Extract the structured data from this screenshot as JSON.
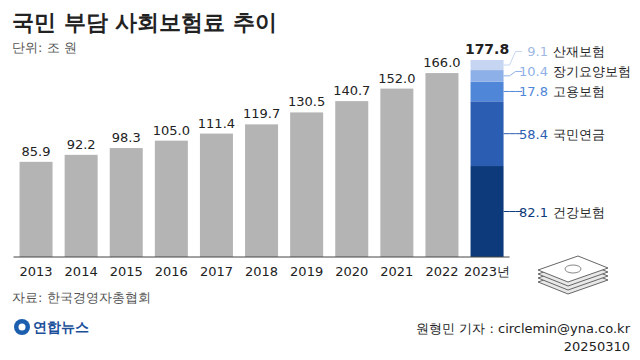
{
  "chart_data": {
    "type": "bar",
    "title": "국민 부담 사회보험료 추이",
    "subtitle": "단위: 조 원",
    "source": "자료: 한국경영자총협회",
    "credit": "원형민 기자 : circlemin@yna.co.kr",
    "date": "20250310",
    "logo": "연합뉴스",
    "categories": [
      "2013",
      "2014",
      "2015",
      "2016",
      "2017",
      "2018",
      "2019",
      "2020",
      "2021",
      "2022",
      "2023년"
    ],
    "stacked": true,
    "data_labels": true,
    "tick_labels": "x",
    "grid": false,
    "ylim": [
      0,
      190
    ],
    "series": [
      {
        "color": "#b4b4b4",
        "values": [
          85.9,
          92.2,
          98.3,
          105.0,
          111.4,
          119.7,
          130.5,
          140.7,
          152.0,
          166.0,
          null
        ],
        "value_labels": [
          "85.9",
          "92.2",
          "98.3",
          "105.0",
          "111.4",
          "119.7",
          "130.5",
          "140.7",
          "152.0",
          "166.0",
          null
        ]
      },
      {
        "name": "건강보험",
        "color": "#0c3a7a",
        "values": [
          null,
          null,
          null,
          null,
          null,
          null,
          null,
          null,
          null,
          null,
          82.1
        ],
        "value_labels": [
          null,
          null,
          null,
          null,
          null,
          null,
          null,
          null,
          null,
          null,
          "82.1"
        ]
      },
      {
        "name": "국민연금",
        "color": "#2b5db2",
        "values": [
          null,
          null,
          null,
          null,
          null,
          null,
          null,
          null,
          null,
          null,
          58.4
        ],
        "value_labels": [
          null,
          null,
          null,
          null,
          null,
          null,
          null,
          null,
          null,
          null,
          "58.4"
        ]
      },
      {
        "name": "고용보험",
        "color": "#4f86d8",
        "values": [
          null,
          null,
          null,
          null,
          null,
          null,
          null,
          null,
          null,
          null,
          17.8
        ],
        "value_labels": [
          null,
          null,
          null,
          null,
          null,
          null,
          null,
          null,
          null,
          null,
          "17.8"
        ]
      },
      {
        "name": "장기요양보험",
        "color": "#8eb0e8",
        "values": [
          null,
          null,
          null,
          null,
          null,
          null,
          null,
          null,
          null,
          null,
          10.4
        ],
        "value_labels": [
          null,
          null,
          null,
          null,
          null,
          null,
          null,
          null,
          null,
          null,
          "10.4"
        ]
      },
      {
        "name": "산재보험",
        "color": "#c6d6f2",
        "values": [
          null,
          null,
          null,
          null,
          null,
          null,
          null,
          null,
          null,
          null,
          9.1
        ],
        "value_labels": [
          null,
          null,
          null,
          null,
          null,
          null,
          null,
          null,
          null,
          null,
          "9.1"
        ]
      }
    ],
    "annotations": [
      {
        "category": "2023년",
        "value": 177.8,
        "label": "177.8"
      }
    ]
  }
}
